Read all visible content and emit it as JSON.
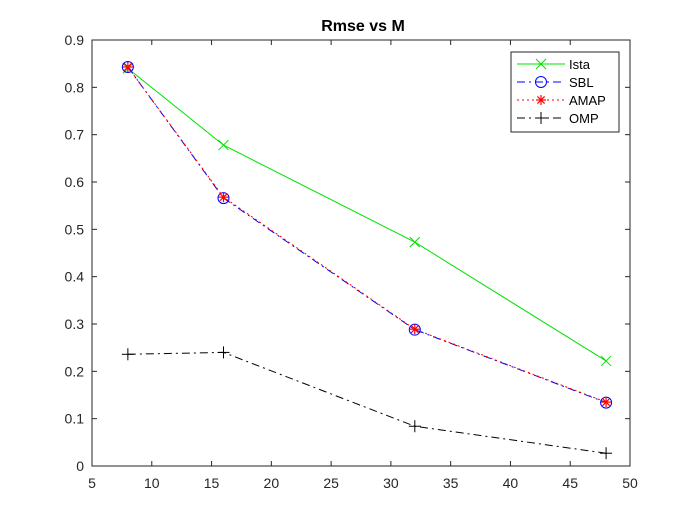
{
  "chart_data": {
    "type": "line",
    "title": "Rmse vs M",
    "xlabel": "",
    "ylabel": "",
    "xlim": [
      5,
      50
    ],
    "ylim": [
      0,
      0.9
    ],
    "xticks": [
      5,
      10,
      15,
      20,
      25,
      30,
      35,
      40,
      45,
      50
    ],
    "yticks": [
      0,
      0.1,
      0.2,
      0.3,
      0.4,
      0.5,
      0.6,
      0.7,
      0.8,
      0.9
    ],
    "grid": false,
    "legend_position": "top-right",
    "x": [
      8,
      16,
      32,
      48
    ],
    "series": [
      {
        "name": "Ista",
        "values": [
          0.84,
          0.678,
          0.473,
          0.222
        ],
        "color": "#00e000",
        "dash": "solid",
        "marker": "x"
      },
      {
        "name": "SBL",
        "values": [
          0.843,
          0.566,
          0.288,
          0.134
        ],
        "color": "#0000ff",
        "dash": "dashdot",
        "marker": "o"
      },
      {
        "name": "AMAP",
        "values": [
          0.843,
          0.568,
          0.289,
          0.135
        ],
        "color": "#ff0000",
        "dash": "dotted",
        "marker": "*"
      },
      {
        "name": "OMP",
        "values": [
          0.236,
          0.24,
          0.084,
          0.027
        ],
        "color": "#000000",
        "dash": "dashdot",
        "marker": "+"
      }
    ]
  }
}
